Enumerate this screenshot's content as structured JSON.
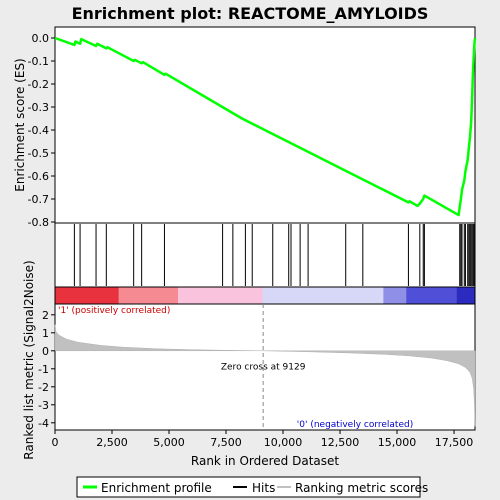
{
  "chart_data": {
    "type": "line",
    "title": "Enrichment plot: REACTOME_AMYLOIDS",
    "top_panel": {
      "ylabel": "Enrichment score (ES)",
      "ylim": [
        -0.8,
        0.0
      ],
      "yticks": [
        "0.0",
        "-0.1",
        "-0.2",
        "-0.3",
        "-0.4",
        "-0.5",
        "-0.6",
        "-0.7",
        "-0.8"
      ],
      "ytick_values": [
        0.0,
        -0.1,
        -0.2,
        -0.3,
        -0.4,
        -0.5,
        -0.6,
        -0.7,
        -0.8
      ],
      "series": [
        {
          "name": "Enrichment profile",
          "color": "#00ff00",
          "x": [
            0,
            850,
            900,
            1100,
            1150,
            1800,
            1850,
            2250,
            2300,
            3450,
            3500,
            3800,
            3850,
            4800,
            4850,
            8200,
            15500,
            15550,
            15900,
            16000,
            16150,
            16200,
            17700,
            17750,
            17800,
            17850,
            17950,
            18000,
            18100,
            18150,
            18200,
            18250,
            18280,
            18300,
            18320,
            18340,
            18360,
            18380,
            18400,
            18420
          ],
          "y": [
            0.0,
            -0.03,
            -0.015,
            -0.025,
            -0.005,
            -0.035,
            -0.025,
            -0.045,
            -0.04,
            -0.1,
            -0.095,
            -0.11,
            -0.105,
            -0.16,
            -0.155,
            -0.35,
            -0.715,
            -0.71,
            -0.73,
            -0.72,
            -0.7,
            -0.685,
            -0.77,
            -0.735,
            -0.7,
            -0.66,
            -0.62,
            -0.58,
            -0.53,
            -0.48,
            -0.43,
            -0.37,
            -0.3,
            -0.24,
            -0.18,
            -0.13,
            -0.09,
            -0.05,
            -0.02,
            0.0
          ]
        }
      ]
    },
    "hits": {
      "name": "Hits",
      "x": [
        850,
        1100,
        1800,
        2250,
        3450,
        3800,
        4800,
        7350,
        7800,
        8350,
        8650,
        9550,
        10250,
        10350,
        10750,
        11100,
        12750,
        13500,
        15500,
        16000,
        16150,
        16200,
        17750,
        17800,
        17850,
        17950,
        18000,
        18100,
        18150,
        18200,
        18250,
        18300,
        18350,
        18400
      ]
    },
    "color_bar": {
      "label_left": "'1' (positively correlated)",
      "label_right": "'0' (negatively correlated)",
      "segments": [
        {
          "from": 0,
          "to": 2800,
          "color": "#e8333f"
        },
        {
          "from": 2800,
          "to": 5400,
          "color": "#f58a93"
        },
        {
          "from": 5400,
          "to": 9100,
          "color": "#f9c3de"
        },
        {
          "from": 9100,
          "to": 14400,
          "color": "#d7d7f7"
        },
        {
          "from": 14400,
          "to": 15400,
          "color": "#8f8fe8"
        },
        {
          "from": 15400,
          "to": 17600,
          "color": "#4f4fd8"
        },
        {
          "from": 17600,
          "to": 18420,
          "color": "#2b2bc0"
        }
      ]
    },
    "bottom_panel": {
      "ylabel": "Ranked list metric (Signal2Noise)",
      "ylim": [
        -4.4,
        2.6
      ],
      "yticks": [
        "2",
        "1",
        "0",
        "-1",
        "-2",
        "-3",
        "-4"
      ],
      "ytick_values": [
        2,
        1,
        0,
        -1,
        -2,
        -3,
        -4
      ],
      "series": [
        {
          "name": "Ranking metric scores",
          "color": "#c0c0c0",
          "x": [
            0,
            50,
            200,
            500,
            1000,
            2000,
            3000,
            4500,
            6000,
            7500,
            9129,
            11000,
            13000,
            14500,
            15500,
            16500,
            17200,
            17700,
            18000,
            18200,
            18300,
            18360,
            18400,
            18420
          ],
          "y": [
            1.45,
            1.05,
            0.85,
            0.65,
            0.48,
            0.3,
            0.2,
            0.11,
            0.06,
            0.03,
            0.0,
            -0.05,
            -0.12,
            -0.2,
            -0.28,
            -0.4,
            -0.55,
            -0.72,
            -0.92,
            -1.2,
            -1.55,
            -2.1,
            -3.0,
            -4.2
          ]
        }
      ],
      "zero_cross_label": "Zero cross at 9129",
      "zero_cross": 9129
    },
    "xlabel": "Rank in Ordered Dataset",
    "xlim": [
      0,
      18420
    ],
    "xticks": [
      "0",
      "2,500",
      "5,000",
      "7,500",
      "10,000",
      "12,500",
      "15,000",
      "17,500"
    ],
    "xtick_values": [
      0,
      2500,
      5000,
      7500,
      10000,
      12500,
      15000,
      17500
    ],
    "legend": {
      "placement": "bottom",
      "items": [
        {
          "label": "Enrichment profile",
          "color": "#00ff00"
        },
        {
          "label": "Hits",
          "color": "#000000"
        },
        {
          "label": "Ranking metric scores",
          "color": "#c0c0c0"
        }
      ]
    }
  }
}
